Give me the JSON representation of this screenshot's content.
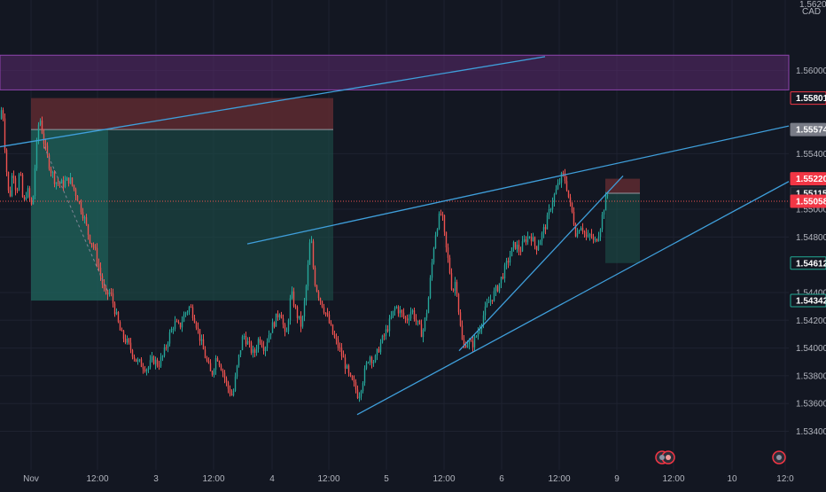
{
  "colors": {
    "background": "#131722",
    "grid": "#1e2230",
    "up": "#26a69a",
    "down": "#ef5350",
    "trendline": "#3f9fdb",
    "purple_zone": "#5b2a6e",
    "purple_border": "#8e44ad",
    "stop_zone": "#5e2a30",
    "target_zone": "#1d4f4a"
  },
  "chart_data": {
    "type": "candlestick",
    "y_axis": {
      "currency": "CAD",
      "top_label": "1.56200",
      "ylim": [
        1.5325,
        1.5638
      ],
      "ticks": [
        "1.56000",
        "1.55400",
        "1.55000",
        "1.54800",
        "1.54400",
        "1.54200",
        "1.54000",
        "1.53800",
        "1.53600",
        "1.53400"
      ]
    },
    "x_axis": {
      "ticks": [
        "Nov",
        "12:00",
        "3",
        "12:00",
        "4",
        "12:00",
        "5",
        "12:00",
        "6",
        "12:00",
        "9",
        "12:00",
        "10",
        "12:0"
      ]
    },
    "price_tags": [
      {
        "value": "1.55801",
        "style": "red-outline"
      },
      {
        "value": "1.55574",
        "style": "gray"
      },
      {
        "value": "1.55220",
        "style": "red"
      },
      {
        "value": "1.55115",
        "style": "dark"
      },
      {
        "value": "1.55058",
        "style": "red"
      },
      {
        "value": "1.54612",
        "style": "green-outline"
      },
      {
        "value": "1.54342",
        "style": "green-outline"
      }
    ],
    "path": [
      [
        0,
        1.5565
      ],
      [
        2,
        1.5578
      ],
      [
        6,
        1.5535
      ],
      [
        10,
        1.5505
      ],
      [
        14,
        1.553
      ],
      [
        18,
        1.5512
      ],
      [
        22,
        1.5528
      ],
      [
        26,
        1.5502
      ],
      [
        30,
        1.5515
      ],
      [
        36,
        1.55
      ],
      [
        40,
        1.554
      ],
      [
        44,
        1.5568
      ],
      [
        50,
        1.5545
      ],
      [
        56,
        1.553
      ],
      [
        62,
        1.552
      ],
      [
        70,
        1.5518
      ],
      [
        78,
        1.5522
      ],
      [
        86,
        1.551
      ],
      [
        94,
        1.5495
      ],
      [
        100,
        1.548
      ],
      [
        106,
        1.5472
      ],
      [
        112,
        1.5455
      ],
      [
        118,
        1.5438
      ],
      [
        124,
        1.544
      ],
      [
        130,
        1.5425
      ],
      [
        136,
        1.541
      ],
      [
        142,
        1.5405
      ],
      [
        148,
        1.5398
      ],
      [
        154,
        1.539
      ],
      [
        160,
        1.5388
      ],
      [
        166,
        1.5385
      ],
      [
        172,
        1.5392
      ],
      [
        178,
        1.5388
      ],
      [
        184,
        1.5395
      ],
      [
        190,
        1.5408
      ],
      [
        196,
        1.5418
      ],
      [
        202,
        1.5415
      ],
      [
        208,
        1.5425
      ],
      [
        214,
        1.543
      ],
      [
        220,
        1.542
      ],
      [
        226,
        1.5405
      ],
      [
        232,
        1.5392
      ],
      [
        238,
        1.538
      ],
      [
        244,
        1.5395
      ],
      [
        250,
        1.5385
      ],
      [
        256,
        1.5372
      ],
      [
        262,
        1.5365
      ],
      [
        268,
        1.539
      ],
      [
        274,
        1.541
      ],
      [
        280,
        1.5402
      ],
      [
        286,
        1.5395
      ],
      [
        292,
        1.5408
      ],
      [
        298,
        1.54
      ],
      [
        304,
        1.5412
      ],
      [
        310,
        1.542
      ],
      [
        316,
        1.5428
      ],
      [
        322,
        1.5405
      ],
      [
        328,
        1.544
      ],
      [
        334,
        1.5425
      ],
      [
        340,
        1.5415
      ],
      [
        346,
        1.545
      ],
      [
        350,
        1.5483
      ],
      [
        354,
        1.545
      ],
      [
        358,
        1.544
      ],
      [
        364,
        1.543
      ],
      [
        370,
        1.542
      ],
      [
        376,
        1.5408
      ],
      [
        382,
        1.54
      ],
      [
        388,
        1.539
      ],
      [
        394,
        1.5378
      ],
      [
        400,
        1.5372
      ],
      [
        404,
        1.5365
      ],
      [
        410,
        1.538
      ],
      [
        416,
        1.5395
      ],
      [
        422,
        1.539
      ],
      [
        428,
        1.5402
      ],
      [
        434,
        1.541
      ],
      [
        440,
        1.542
      ],
      [
        446,
        1.543
      ],
      [
        452,
        1.5425
      ],
      [
        458,
        1.542
      ],
      [
        464,
        1.5428
      ],
      [
        470,
        1.5418
      ],
      [
        476,
        1.541
      ],
      [
        482,
        1.543
      ],
      [
        486,
        1.5455
      ],
      [
        490,
        1.548
      ],
      [
        494,
        1.5492
      ],
      [
        498,
        1.5498
      ],
      [
        502,
        1.5475
      ],
      [
        506,
        1.546
      ],
      [
        510,
        1.544
      ],
      [
        514,
        1.545
      ],
      [
        518,
        1.542
      ],
      [
        522,
        1.54
      ],
      [
        526,
        1.5405
      ],
      [
        532,
        1.5402
      ],
      [
        538,
        1.541
      ],
      [
        544,
        1.5422
      ],
      [
        550,
        1.5432
      ],
      [
        556,
        1.5438
      ],
      [
        562,
        1.5445
      ],
      [
        568,
        1.5455
      ],
      [
        574,
        1.5465
      ],
      [
        580,
        1.5475
      ],
      [
        586,
        1.547
      ],
      [
        592,
        1.5478
      ],
      [
        598,
        1.5482
      ],
      [
        604,
        1.5472
      ],
      [
        610,
        1.548
      ],
      [
        616,
        1.549
      ],
      [
        622,
        1.5505
      ],
      [
        628,
        1.5515
      ],
      [
        634,
        1.5525
      ],
      [
        638,
        1.552
      ],
      [
        642,
        1.5505
      ],
      [
        646,
        1.5495
      ],
      [
        650,
        1.548
      ],
      [
        654,
        1.549
      ],
      [
        658,
        1.5485
      ],
      [
        662,
        1.5478
      ],
      [
        666,
        1.5482
      ],
      [
        670,
        1.5475
      ],
      [
        676,
        1.5485
      ],
      [
        682,
        1.5505
      ],
      [
        686,
        1.5512
      ]
    ],
    "trendlines": [
      {
        "x1": 0,
        "y1": 1.5545,
        "x2": 615,
        "y2": 1.561
      },
      {
        "x1": 279,
        "y1": 1.5475,
        "x2": 890,
        "y2": 1.556
      },
      {
        "x1": 403,
        "y1": 1.5352,
        "x2": 890,
        "y2": 1.552
      },
      {
        "x1": 518,
        "y1": 1.5398,
        "x2": 703,
        "y2": 1.5524
      }
    ],
    "dashed_lines": [
      {
        "x1": 50,
        "y1": 1.5545,
        "x2": 122,
        "y2": 1.544
      }
    ],
    "zones": [
      {
        "kind": "purple",
        "x1": 0,
        "x2": 890,
        "y_top": 1.5611,
        "y_bottom": 1.5586
      },
      {
        "kind": "stop",
        "x1": 35,
        "x2": 376,
        "y_top": 1.55801,
        "y_bottom": 1.55574
      },
      {
        "kind": "target",
        "x1": 35,
        "x2": 376,
        "y_top": 1.55574,
        "y_bottom": 1.54342
      },
      {
        "kind": "target-bright",
        "x1": 35,
        "x2": 122,
        "y_top": 1.55574,
        "y_bottom": 1.54342
      },
      {
        "kind": "stop",
        "x1": 683,
        "x2": 722,
        "y_top": 1.5522,
        "y_bottom": 1.55115
      },
      {
        "kind": "target",
        "x1": 683,
        "x2": 722,
        "y_top": 1.55115,
        "y_bottom": 1.54612
      }
    ],
    "dotted_price": 1.55058,
    "event_markers": [
      {
        "x": 750,
        "kind": "flag-pair"
      },
      {
        "x": 879,
        "kind": "flag"
      }
    ]
  }
}
